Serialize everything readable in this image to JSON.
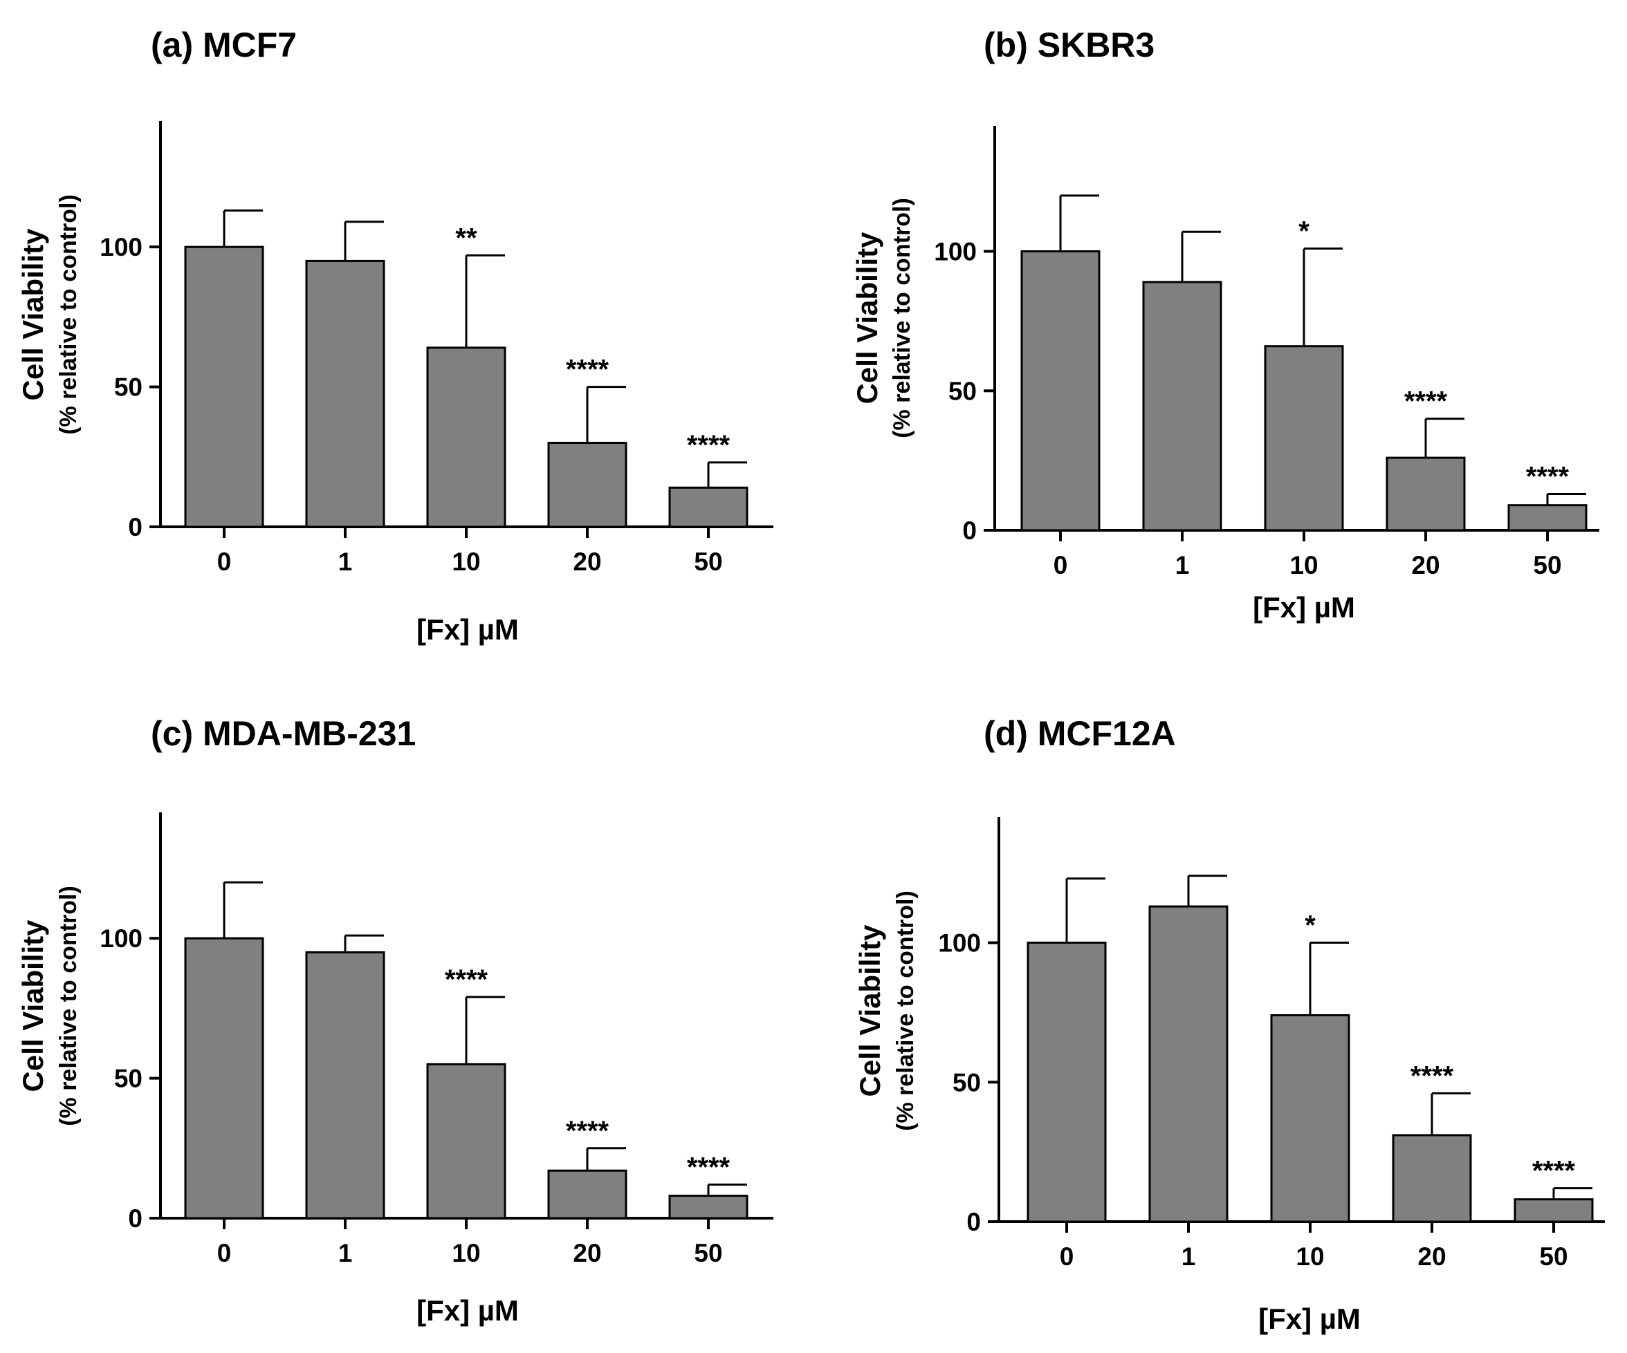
{
  "chart_data": [
    {
      "type": "bar",
      "title": "(a) MCF7",
      "xlabel": "[Fx] µM",
      "ylabel": "Cell Viability",
      "ylabel_sub": "(% relative to control)",
      "categories": [
        "0",
        "1",
        "10",
        "20",
        "50"
      ],
      "values": [
        100,
        95,
        64,
        30,
        14
      ],
      "errors": [
        13,
        14,
        33,
        20,
        9
      ],
      "significance": [
        "",
        "",
        "**",
        "****",
        "****"
      ],
      "ylim": [
        0,
        145
      ],
      "yticks": [
        0,
        50,
        100
      ],
      "ytick_labels": [
        "0",
        "50",
        "100"
      ],
      "bar_color": "#808080"
    },
    {
      "type": "bar",
      "title": "(b) SKBR3",
      "xlabel": "[Fx] µM",
      "ylabel": "Cell Viability",
      "ylabel_sub": "(% relative to control)",
      "categories": [
        "0",
        "1",
        "10",
        "20",
        "50"
      ],
      "values": [
        100,
        89,
        66,
        26,
        9
      ],
      "errors": [
        20,
        18,
        35,
        14,
        4
      ],
      "significance": [
        "",
        "",
        "*",
        "****",
        "****"
      ],
      "ylim": [
        0,
        145
      ],
      "yticks": [
        0,
        50,
        100
      ],
      "ytick_labels": [
        "0",
        "50",
        "100"
      ],
      "bar_color": "#808080"
    },
    {
      "type": "bar",
      "title": "(c) MDA-MB-231",
      "xlabel": "[Fx] µM",
      "ylabel": "Cell Viability",
      "ylabel_sub": "(% relative to control)",
      "categories": [
        "0",
        "1",
        "10",
        "20",
        "50"
      ],
      "values": [
        100,
        95,
        55,
        17,
        8
      ],
      "errors": [
        20,
        6,
        24,
        8,
        4
      ],
      "significance": [
        "",
        "",
        "****",
        "****",
        "****"
      ],
      "ylim": [
        0,
        145
      ],
      "yticks": [
        0,
        50,
        100
      ],
      "ytick_labels": [
        "0",
        "50",
        "100"
      ],
      "bar_color": "#808080"
    },
    {
      "type": "bar",
      "title": "(d) MCF12A",
      "xlabel": "[Fx] µM",
      "ylabel": "Cell Viability",
      "ylabel_sub": "(% relative to control)",
      "categories": [
        "0",
        "1",
        "10",
        "20",
        "50"
      ],
      "values": [
        100,
        113,
        74,
        31,
        8
      ],
      "errors": [
        23,
        11,
        26,
        15,
        4
      ],
      "significance": [
        "",
        "",
        "*",
        "****",
        "****"
      ],
      "ylim": [
        0,
        145
      ],
      "yticks": [
        0,
        50,
        100
      ],
      "ytick_labels": [
        "0",
        "50",
        "100"
      ],
      "bar_color": "#808080"
    }
  ]
}
